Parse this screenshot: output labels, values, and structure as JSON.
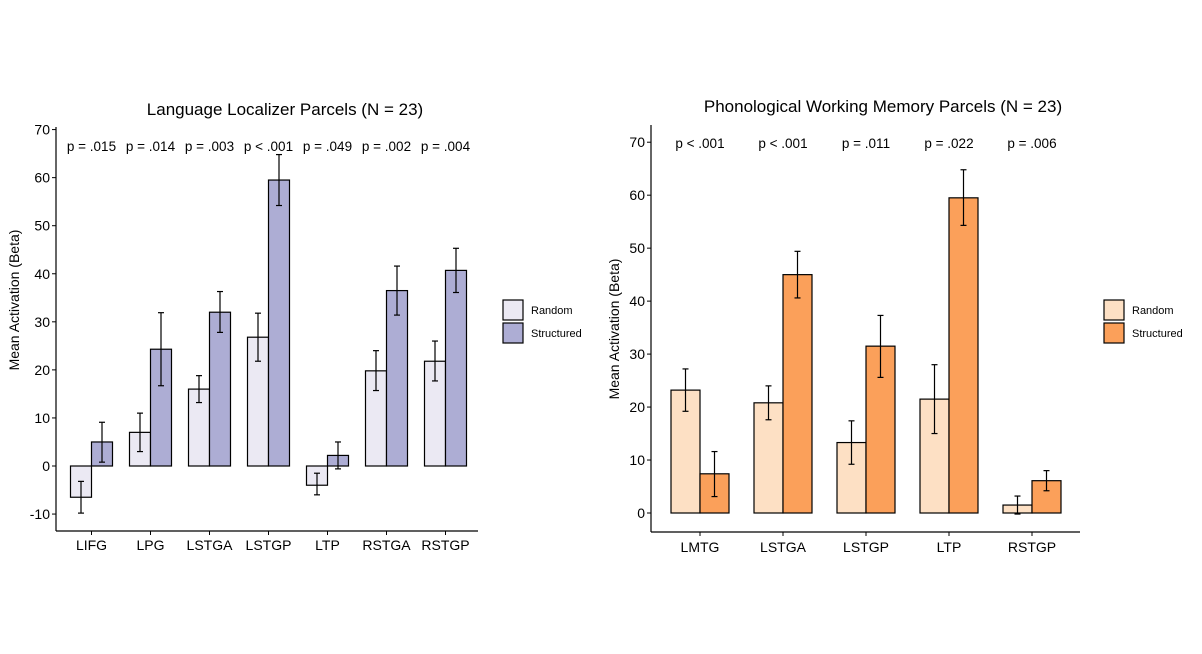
{
  "chart_data": [
    {
      "type": "bar",
      "title": "Language Localizer Parcels (N = 23)",
      "xlabel": "",
      "ylabel": "Mean Activation (Beta)",
      "ylim": [
        -13,
        71
      ],
      "yticks": [
        -10,
        0,
        10,
        20,
        30,
        40,
        50,
        60,
        70
      ],
      "ytick_labels": [
        "-10",
        "0",
        "10",
        "20",
        "30",
        "40",
        "50",
        "60",
        "70"
      ],
      "categories": [
        "LIFG",
        "LPG",
        "LSTGA",
        "LSTGP",
        "LTP",
        "RSTGA",
        "RSTGP"
      ],
      "series": [
        {
          "name": "Random",
          "color": "#ebe9f3",
          "values": [
            -6.5,
            7,
            16,
            26.8,
            -4,
            19.8,
            21.8
          ],
          "err_low": [
            -9.8,
            3,
            13.2,
            21.8,
            -6,
            15.7,
            17.7
          ],
          "err_high": [
            -3.2,
            11,
            18.8,
            31.8,
            -1.5,
            24,
            26
          ]
        },
        {
          "name": "Structured",
          "color": "#adadd4",
          "values": [
            5,
            24.3,
            32,
            59.5,
            2.2,
            36.5,
            40.7
          ],
          "err_low": [
            0.8,
            16.7,
            27.8,
            54.2,
            -0.6,
            31.4,
            36.1
          ],
          "err_high": [
            9.1,
            31.9,
            36.3,
            64.8,
            5,
            41.6,
            45.3
          ]
        }
      ],
      "annotations": [
        "p = .015",
        "p = .014",
        "p = .003",
        "p < .001",
        "p = .049",
        "p = .002",
        "p = .004"
      ],
      "legend": "right",
      "grid": false
    },
    {
      "type": "bar",
      "title": "Phonological Working Memory Parcels (N = 23)",
      "xlabel": "",
      "ylabel": "Mean Activation (Beta)",
      "ylim": [
        -3.6,
        73
      ],
      "yticks": [
        0,
        10,
        20,
        30,
        40,
        50,
        60,
        70
      ],
      "ytick_labels": [
        "0",
        "10",
        "20",
        "30",
        "40",
        "50",
        "60",
        "70"
      ],
      "categories": [
        "LMTG",
        "LSTGA",
        "LSTGP",
        "LTP",
        "RSTGP"
      ],
      "series": [
        {
          "name": "Random",
          "color": "#fde0c4",
          "values": [
            23.2,
            20.8,
            13.3,
            21.5,
            1.5
          ],
          "err_low": [
            19.2,
            17.6,
            9.2,
            15,
            -0.2
          ],
          "err_high": [
            27.2,
            24,
            17.4,
            28,
            3.2
          ]
        },
        {
          "name": "Structured",
          "color": "#fba05a",
          "values": [
            7.4,
            45,
            31.5,
            59.5,
            6.1
          ],
          "err_low": [
            3.1,
            40.6,
            25.6,
            54.3,
            4.2
          ],
          "err_high": [
            11.6,
            49.4,
            37.3,
            64.8,
            8
          ]
        }
      ],
      "annotations": [
        "p < .001",
        "p < .001",
        "p = .011",
        "p = .022",
        "p = .006"
      ],
      "legend": "right",
      "grid": false
    }
  ]
}
